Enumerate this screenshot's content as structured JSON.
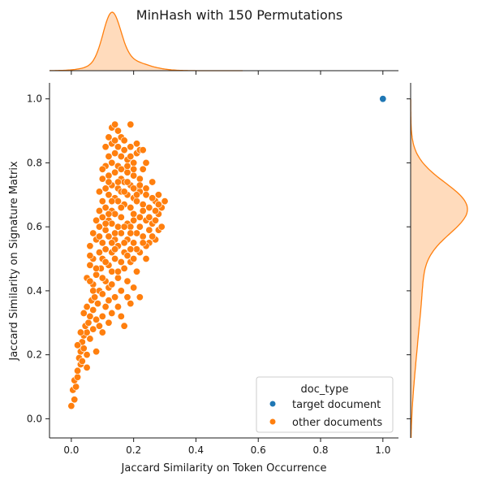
{
  "chart_data": {
    "type": "scatter",
    "title": "MinHash with 150 Permutations",
    "xlabel": "Jaccard Similarity on Token Occurrence",
    "ylabel": "Jaccard Similarity on Signature Matrix",
    "xlim": [
      -0.07,
      1.05
    ],
    "ylim": [
      -0.06,
      1.05
    ],
    "xticks": [
      "0.0",
      "0.2",
      "0.4",
      "0.6",
      "0.8",
      "1.0"
    ],
    "yticks": [
      "0.0",
      "0.2",
      "0.4",
      "0.6",
      "0.8",
      "1.0"
    ],
    "grid": false,
    "legend": {
      "title": "doc_type",
      "placement": "lower-right"
    },
    "series": [
      {
        "name": "target document",
        "color": "#1f77b4",
        "points": [
          [
            1.0,
            1.0
          ]
        ]
      },
      {
        "name": "other documents",
        "color": "#ff7f0e",
        "points": [
          [
            0.0,
            0.04
          ],
          [
            0.01,
            0.06
          ],
          [
            0.005,
            0.09
          ],
          [
            0.015,
            0.1
          ],
          [
            0.01,
            0.12
          ],
          [
            0.02,
            0.13
          ],
          [
            0.02,
            0.15
          ],
          [
            0.03,
            0.17
          ],
          [
            0.025,
            0.19
          ],
          [
            0.03,
            0.21
          ],
          [
            0.04,
            0.22
          ],
          [
            0.05,
            0.2
          ],
          [
            0.035,
            0.24
          ],
          [
            0.04,
            0.26
          ],
          [
            0.05,
            0.27
          ],
          [
            0.06,
            0.25
          ],
          [
            0.045,
            0.29
          ],
          [
            0.055,
            0.3
          ],
          [
            0.07,
            0.28
          ],
          [
            0.08,
            0.21
          ],
          [
            0.06,
            0.32
          ],
          [
            0.07,
            0.34
          ],
          [
            0.05,
            0.35
          ],
          [
            0.08,
            0.31
          ],
          [
            0.09,
            0.29
          ],
          [
            0.1,
            0.27
          ],
          [
            0.12,
            0.3
          ],
          [
            0.065,
            0.37
          ],
          [
            0.075,
            0.38
          ],
          [
            0.085,
            0.36
          ],
          [
            0.09,
            0.4
          ],
          [
            0.07,
            0.42
          ],
          [
            0.1,
            0.39
          ],
          [
            0.11,
            0.35
          ],
          [
            0.13,
            0.33
          ],
          [
            0.05,
            0.44
          ],
          [
            0.08,
            0.45
          ],
          [
            0.095,
            0.47
          ],
          [
            0.06,
            0.48
          ],
          [
            0.11,
            0.43
          ],
          [
            0.12,
            0.41
          ],
          [
            0.14,
            0.38
          ],
          [
            0.16,
            0.32
          ],
          [
            0.17,
            0.29
          ],
          [
            0.07,
            0.5
          ],
          [
            0.09,
            0.52
          ],
          [
            0.1,
            0.5
          ],
          [
            0.12,
            0.48
          ],
          [
            0.13,
            0.46
          ],
          [
            0.15,
            0.44
          ],
          [
            0.16,
            0.4
          ],
          [
            0.18,
            0.38
          ],
          [
            0.06,
            0.54
          ],
          [
            0.08,
            0.56
          ],
          [
            0.1,
            0.55
          ],
          [
            0.11,
            0.53
          ],
          [
            0.13,
            0.52
          ],
          [
            0.14,
            0.5
          ],
          [
            0.17,
            0.47
          ],
          [
            0.18,
            0.43
          ],
          [
            0.2,
            0.41
          ],
          [
            0.22,
            0.38
          ],
          [
            0.07,
            0.58
          ],
          [
            0.09,
            0.6
          ],
          [
            0.11,
            0.59
          ],
          [
            0.12,
            0.57
          ],
          [
            0.14,
            0.56
          ],
          [
            0.15,
            0.54
          ],
          [
            0.17,
            0.52
          ],
          [
            0.19,
            0.49
          ],
          [
            0.21,
            0.46
          ],
          [
            0.08,
            0.62
          ],
          [
            0.1,
            0.63
          ],
          [
            0.12,
            0.62
          ],
          [
            0.13,
            0.61
          ],
          [
            0.15,
            0.6
          ],
          [
            0.16,
            0.58
          ],
          [
            0.18,
            0.56
          ],
          [
            0.2,
            0.55
          ],
          [
            0.22,
            0.52
          ],
          [
            0.24,
            0.5
          ],
          [
            0.09,
            0.65
          ],
          [
            0.11,
            0.66
          ],
          [
            0.13,
            0.65
          ],
          [
            0.14,
            0.64
          ],
          [
            0.16,
            0.63
          ],
          [
            0.18,
            0.61
          ],
          [
            0.19,
            0.6
          ],
          [
            0.21,
            0.58
          ],
          [
            0.23,
            0.57
          ],
          [
            0.25,
            0.55
          ],
          [
            0.27,
            0.56
          ],
          [
            0.28,
            0.59
          ],
          [
            0.1,
            0.68
          ],
          [
            0.12,
            0.7
          ],
          [
            0.14,
            0.69
          ],
          [
            0.15,
            0.68
          ],
          [
            0.17,
            0.67
          ],
          [
            0.19,
            0.66
          ],
          [
            0.2,
            0.64
          ],
          [
            0.22,
            0.63
          ],
          [
            0.24,
            0.62
          ],
          [
            0.26,
            0.61
          ],
          [
            0.28,
            0.64
          ],
          [
            0.29,
            0.66
          ],
          [
            0.3,
            0.68
          ],
          [
            0.11,
            0.72
          ],
          [
            0.13,
            0.73
          ],
          [
            0.15,
            0.72
          ],
          [
            0.16,
            0.71
          ],
          [
            0.18,
            0.7
          ],
          [
            0.2,
            0.69
          ],
          [
            0.21,
            0.68
          ],
          [
            0.23,
            0.67
          ],
          [
            0.25,
            0.66
          ],
          [
            0.27,
            0.68
          ],
          [
            0.28,
            0.7
          ],
          [
            0.1,
            0.75
          ],
          [
            0.12,
            0.76
          ],
          [
            0.14,
            0.77
          ],
          [
            0.16,
            0.75
          ],
          [
            0.17,
            0.74
          ],
          [
            0.19,
            0.73
          ],
          [
            0.21,
            0.72
          ],
          [
            0.22,
            0.71
          ],
          [
            0.24,
            0.72
          ],
          [
            0.26,
            0.74
          ],
          [
            0.11,
            0.79
          ],
          [
            0.13,
            0.8
          ],
          [
            0.15,
            0.79
          ],
          [
            0.17,
            0.78
          ],
          [
            0.18,
            0.77
          ],
          [
            0.2,
            0.76
          ],
          [
            0.22,
            0.75
          ],
          [
            0.23,
            0.78
          ],
          [
            0.24,
            0.8
          ],
          [
            0.12,
            0.82
          ],
          [
            0.14,
            0.83
          ],
          [
            0.16,
            0.82
          ],
          [
            0.18,
            0.81
          ],
          [
            0.2,
            0.8
          ],
          [
            0.21,
            0.83
          ],
          [
            0.22,
            0.84
          ],
          [
            0.11,
            0.85
          ],
          [
            0.13,
            0.86
          ],
          [
            0.15,
            0.85
          ],
          [
            0.17,
            0.84
          ],
          [
            0.19,
            0.85
          ],
          [
            0.12,
            0.88
          ],
          [
            0.14,
            0.87
          ],
          [
            0.16,
            0.88
          ],
          [
            0.13,
            0.91
          ],
          [
            0.14,
            0.92
          ],
          [
            0.19,
            0.92
          ],
          [
            0.23,
            0.84
          ],
          [
            0.09,
            0.57
          ],
          [
            0.06,
            0.51
          ],
          [
            0.19,
            0.58
          ],
          [
            0.2,
            0.62
          ],
          [
            0.16,
            0.66
          ],
          [
            0.12,
            0.64
          ],
          [
            0.15,
            0.74
          ],
          [
            0.18,
            0.79
          ],
          [
            0.14,
            0.58
          ],
          [
            0.17,
            0.6
          ],
          [
            0.13,
            0.55
          ],
          [
            0.11,
            0.61
          ],
          [
            0.1,
            0.44
          ],
          [
            0.08,
            0.47
          ],
          [
            0.15,
            0.35
          ],
          [
            0.19,
            0.36
          ],
          [
            0.12,
            0.37
          ],
          [
            0.25,
            0.59
          ],
          [
            0.26,
            0.57
          ],
          [
            0.24,
            0.54
          ],
          [
            0.27,
            0.62
          ],
          [
            0.29,
            0.6
          ],
          [
            0.22,
            0.6
          ],
          [
            0.23,
            0.65
          ],
          [
            0.21,
            0.7
          ],
          [
            0.17,
            0.71
          ],
          [
            0.13,
            0.68
          ],
          [
            0.09,
            0.71
          ],
          [
            0.1,
            0.78
          ],
          [
            0.12,
            0.74
          ],
          [
            0.16,
            0.78
          ],
          [
            0.18,
            0.74
          ],
          [
            0.2,
            0.72
          ],
          [
            0.14,
            0.53
          ],
          [
            0.11,
            0.49
          ],
          [
            0.16,
            0.49
          ],
          [
            0.18,
            0.51
          ],
          [
            0.2,
            0.5
          ],
          [
            0.21,
            0.53
          ],
          [
            0.07,
            0.4
          ],
          [
            0.06,
            0.43
          ],
          [
            0.04,
            0.33
          ],
          [
            0.03,
            0.27
          ],
          [
            0.02,
            0.23
          ],
          [
            0.035,
            0.18
          ],
          [
            0.05,
            0.16
          ],
          [
            0.1,
            0.32
          ],
          [
            0.13,
            0.42
          ],
          [
            0.15,
            0.46
          ],
          [
            0.17,
            0.55
          ],
          [
            0.19,
            0.53
          ],
          [
            0.23,
            0.55
          ],
          [
            0.25,
            0.63
          ],
          [
            0.27,
            0.65
          ],
          [
            0.28,
            0.67
          ],
          [
            0.26,
            0.69
          ],
          [
            0.24,
            0.7
          ],
          [
            0.22,
            0.73
          ],
          [
            0.2,
            0.78
          ],
          [
            0.19,
            0.82
          ],
          [
            0.17,
            0.87
          ],
          [
            0.15,
            0.9
          ],
          [
            0.21,
            0.86
          ]
        ]
      }
    ],
    "density": {
      "x": {
        "range": [
          -0.07,
          0.55
        ],
        "peaks": [
          {
            "center": 0.13,
            "width": 0.028,
            "weight": 1.0
          },
          {
            "center": 0.16,
            "width": 0.07,
            "weight": 0.25
          }
        ]
      },
      "y": {
        "range": [
          -0.06,
          1.0
        ],
        "peaks": [
          {
            "center": 0.66,
            "width": 0.08,
            "weight": 1.0
          },
          {
            "center": 0.45,
            "width": 0.16,
            "weight": 0.22
          },
          {
            "center": 0.18,
            "width": 0.12,
            "weight": 0.05
          }
        ]
      }
    }
  }
}
